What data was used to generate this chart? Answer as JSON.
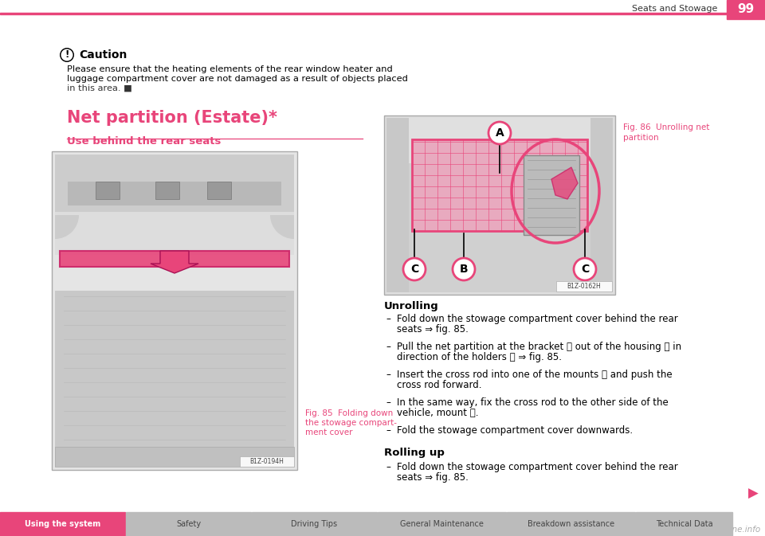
{
  "title_right": "Seats and Stowage",
  "page_number": "99",
  "pink": "#E8457A",
  "dark_gray": "#333333",
  "medium_gray": "#777777",
  "light_gray": "#BBBBBB",
  "bg": "#FFFFFF",
  "caution_title": "Caution",
  "caution_line1": "Please ensure that the heating elements of the rear window heater and",
  "caution_line2": "luggage compartment cover are not damaged as a result of objects placed",
  "caution_line3": "in this area. ■",
  "section_title": "Net partition (Estate)*",
  "subsection_title": "Use behind the rear seats",
  "fig85_cap1": "Fig. 85  Folding down",
  "fig85_cap2": "the stowage compart-",
  "fig85_cap3": "ment cover",
  "fig85_code": "B1Z-0194H",
  "fig86_cap1": "Fig. 86  Unrolling net",
  "fig86_cap2": "partition",
  "fig86_code": "B1Z-0162H",
  "unrolling_title": "Unrolling",
  "b1a": "Fold down the stowage compartment cover behind the rear",
  "b1b": "seats ⇒ fig. 85.",
  "b2a": "Pull the net partition at the bracket Ⓐ out of the housing Ⓑ in",
  "b2b": "direction of the holders Ⓒ ⇒ fig. 85.",
  "b3a": "Insert the cross rod into one of the mounts Ⓒ and push the",
  "b3b": "cross rod forward.",
  "b4a": "In the same way, fix the cross rod to the other side of the",
  "b4b": "vehicle, mount Ⓒ.",
  "b5": "Fold the stowage compartment cover downwards.",
  "rolling_title": "Rolling up",
  "b6a": "Fold down the stowage compartment cover behind the rear",
  "b6b": "seats ⇒ fig. 85.",
  "nav_items": [
    "Using the system",
    "Safety",
    "Driving Tips",
    "General Maintenance",
    "Breakdown assistance",
    "Technical Data"
  ],
  "nav_active_color": "#E8457A",
  "nav_inactive_color": "#BBBBBB",
  "nav_text_white": "#FFFFFF",
  "nav_text_dark": "#444444",
  "nav_widths": [
    158,
    158,
    158,
    162,
    162,
    122
  ]
}
